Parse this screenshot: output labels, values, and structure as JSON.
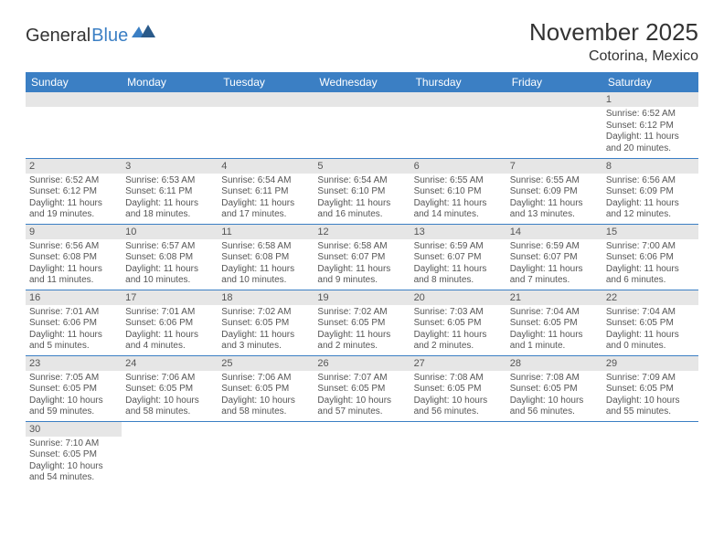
{
  "logo": {
    "text1": "General",
    "text2": "Blue"
  },
  "title": "November 2025",
  "location": "Cotorina, Mexico",
  "header_color": "#3b7fc4",
  "daybar_color": "#e6e6e6",
  "dayNames": [
    "Sunday",
    "Monday",
    "Tuesday",
    "Wednesday",
    "Thursday",
    "Friday",
    "Saturday"
  ],
  "weeks": [
    [
      null,
      null,
      null,
      null,
      null,
      null,
      {
        "n": "1",
        "sunrise": "6:52 AM",
        "sunset": "6:12 PM",
        "daylight": "11 hours and 20 minutes."
      }
    ],
    [
      {
        "n": "2",
        "sunrise": "6:52 AM",
        "sunset": "6:12 PM",
        "daylight": "11 hours and 19 minutes."
      },
      {
        "n": "3",
        "sunrise": "6:53 AM",
        "sunset": "6:11 PM",
        "daylight": "11 hours and 18 minutes."
      },
      {
        "n": "4",
        "sunrise": "6:54 AM",
        "sunset": "6:11 PM",
        "daylight": "11 hours and 17 minutes."
      },
      {
        "n": "5",
        "sunrise": "6:54 AM",
        "sunset": "6:10 PM",
        "daylight": "11 hours and 16 minutes."
      },
      {
        "n": "6",
        "sunrise": "6:55 AM",
        "sunset": "6:10 PM",
        "daylight": "11 hours and 14 minutes."
      },
      {
        "n": "7",
        "sunrise": "6:55 AM",
        "sunset": "6:09 PM",
        "daylight": "11 hours and 13 minutes."
      },
      {
        "n": "8",
        "sunrise": "6:56 AM",
        "sunset": "6:09 PM",
        "daylight": "11 hours and 12 minutes."
      }
    ],
    [
      {
        "n": "9",
        "sunrise": "6:56 AM",
        "sunset": "6:08 PM",
        "daylight": "11 hours and 11 minutes."
      },
      {
        "n": "10",
        "sunrise": "6:57 AM",
        "sunset": "6:08 PM",
        "daylight": "11 hours and 10 minutes."
      },
      {
        "n": "11",
        "sunrise": "6:58 AM",
        "sunset": "6:08 PM",
        "daylight": "11 hours and 10 minutes."
      },
      {
        "n": "12",
        "sunrise": "6:58 AM",
        "sunset": "6:07 PM",
        "daylight": "11 hours and 9 minutes."
      },
      {
        "n": "13",
        "sunrise": "6:59 AM",
        "sunset": "6:07 PM",
        "daylight": "11 hours and 8 minutes."
      },
      {
        "n": "14",
        "sunrise": "6:59 AM",
        "sunset": "6:07 PM",
        "daylight": "11 hours and 7 minutes."
      },
      {
        "n": "15",
        "sunrise": "7:00 AM",
        "sunset": "6:06 PM",
        "daylight": "11 hours and 6 minutes."
      }
    ],
    [
      {
        "n": "16",
        "sunrise": "7:01 AM",
        "sunset": "6:06 PM",
        "daylight": "11 hours and 5 minutes."
      },
      {
        "n": "17",
        "sunrise": "7:01 AM",
        "sunset": "6:06 PM",
        "daylight": "11 hours and 4 minutes."
      },
      {
        "n": "18",
        "sunrise": "7:02 AM",
        "sunset": "6:05 PM",
        "daylight": "11 hours and 3 minutes."
      },
      {
        "n": "19",
        "sunrise": "7:02 AM",
        "sunset": "6:05 PM",
        "daylight": "11 hours and 2 minutes."
      },
      {
        "n": "20",
        "sunrise": "7:03 AM",
        "sunset": "6:05 PM",
        "daylight": "11 hours and 2 minutes."
      },
      {
        "n": "21",
        "sunrise": "7:04 AM",
        "sunset": "6:05 PM",
        "daylight": "11 hours and 1 minute."
      },
      {
        "n": "22",
        "sunrise": "7:04 AM",
        "sunset": "6:05 PM",
        "daylight": "11 hours and 0 minutes."
      }
    ],
    [
      {
        "n": "23",
        "sunrise": "7:05 AM",
        "sunset": "6:05 PM",
        "daylight": "10 hours and 59 minutes."
      },
      {
        "n": "24",
        "sunrise": "7:06 AM",
        "sunset": "6:05 PM",
        "daylight": "10 hours and 58 minutes."
      },
      {
        "n": "25",
        "sunrise": "7:06 AM",
        "sunset": "6:05 PM",
        "daylight": "10 hours and 58 minutes."
      },
      {
        "n": "26",
        "sunrise": "7:07 AM",
        "sunset": "6:05 PM",
        "daylight": "10 hours and 57 minutes."
      },
      {
        "n": "27",
        "sunrise": "7:08 AM",
        "sunset": "6:05 PM",
        "daylight": "10 hours and 56 minutes."
      },
      {
        "n": "28",
        "sunrise": "7:08 AM",
        "sunset": "6:05 PM",
        "daylight": "10 hours and 56 minutes."
      },
      {
        "n": "29",
        "sunrise": "7:09 AM",
        "sunset": "6:05 PM",
        "daylight": "10 hours and 55 minutes."
      }
    ],
    [
      {
        "n": "30",
        "sunrise": "7:10 AM",
        "sunset": "6:05 PM",
        "daylight": "10 hours and 54 minutes."
      },
      null,
      null,
      null,
      null,
      null,
      null
    ]
  ],
  "labels": {
    "sunrise": "Sunrise: ",
    "sunset": "Sunset: ",
    "daylight": "Daylight: "
  }
}
